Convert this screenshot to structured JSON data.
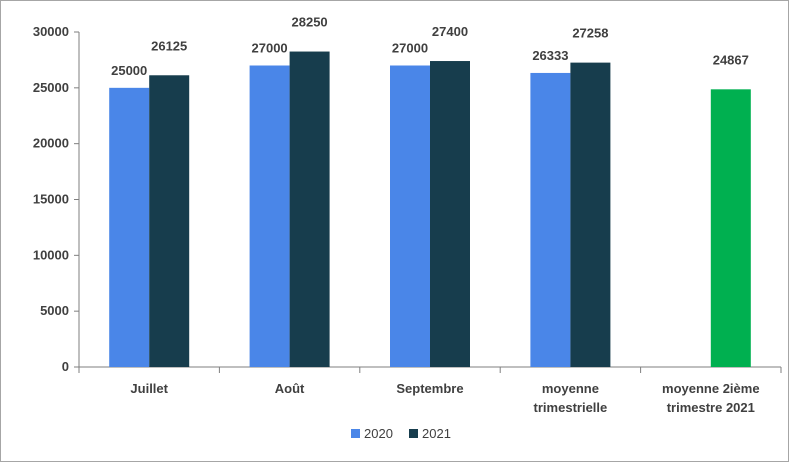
{
  "chart_data": {
    "type": "bar",
    "categories": [
      "Juillet",
      "Août",
      "Septembre",
      "moyenne trimestrielle",
      "moyenne 2ième trimestre 2021"
    ],
    "category_lines": [
      [
        "Juillet"
      ],
      [
        "Août"
      ],
      [
        "Septembre"
      ],
      [
        "moyenne",
        "trimestrielle"
      ],
      [
        "moyenne 2ième",
        "trimestre 2021"
      ]
    ],
    "series": [
      {
        "name": "2020",
        "color": "#4a86e8",
        "values": [
          25000,
          27000,
          27000,
          26333,
          null
        ],
        "labels": [
          "25000",
          "27000",
          "27000",
          "26333",
          ""
        ]
      },
      {
        "name": "2021",
        "color": "#173d4d",
        "values": [
          26125,
          28250,
          27400,
          27258,
          null
        ],
        "labels": [
          "26125",
          "28250",
          "27400",
          "27258",
          ""
        ]
      }
    ],
    "extra_bar": {
      "category_index": 4,
      "value": 24867,
      "label": "24867",
      "color": "#00b050"
    },
    "ylim": [
      0,
      30000
    ],
    "yticks": [
      0,
      5000,
      10000,
      15000,
      20000,
      25000,
      30000
    ],
    "ytick_labels": [
      "0",
      "5000",
      "10000",
      "15000",
      "20000",
      "25000",
      "30000"
    ],
    "grid": false,
    "legend": {
      "position": "bottom",
      "entries": [
        "2020",
        "2021"
      ]
    },
    "axis_color": "#7f7f7f"
  }
}
